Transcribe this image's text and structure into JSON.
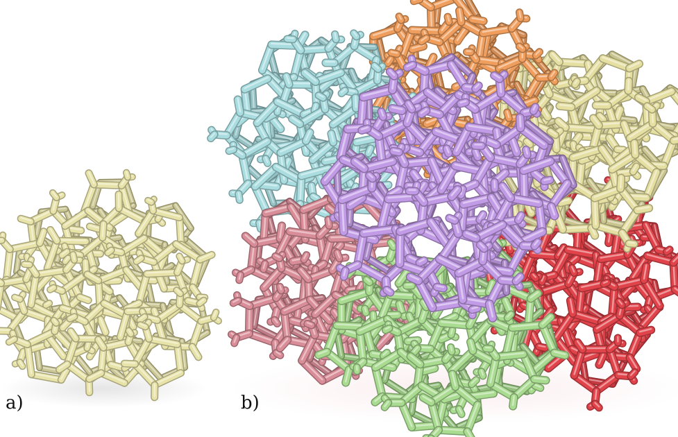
{
  "panels": [
    {
      "label": "a)",
      "cluster_colors": [
        "#e8e3a9"
      ]
    },
    {
      "label": "b)",
      "cluster_colors": {
        "cyan": "#a9dde0",
        "orange": "#ef9e5d",
        "cream": "#e5dfa2",
        "pink": "#d98d98",
        "red": "#e0434a",
        "green": "#a9db90",
        "purple": "#c29be6"
      }
    }
  ],
  "background": "#ffffff"
}
